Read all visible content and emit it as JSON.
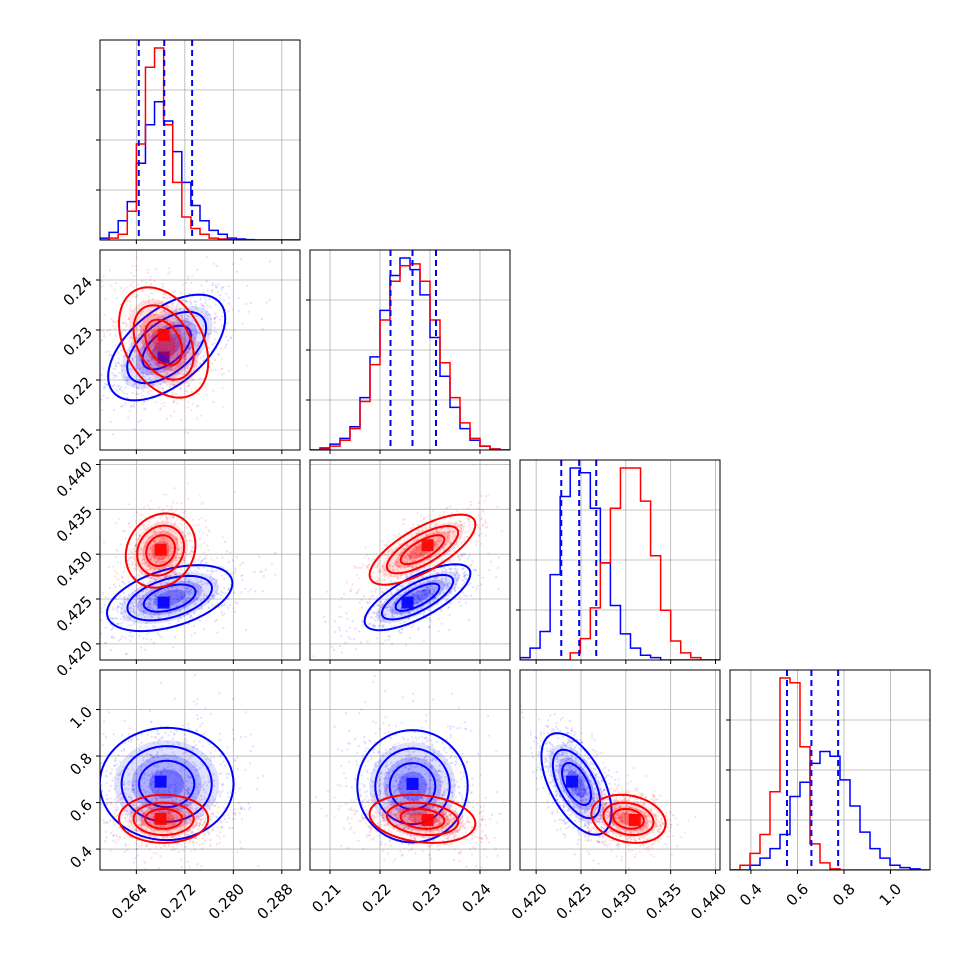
{
  "chart_data": {
    "type": "corner",
    "colors": {
      "model_a": "#0000ff",
      "model_b": "#ff0000",
      "quantile_lines": "#0000ff",
      "grid": "#b0b0b0"
    },
    "grid": true,
    "parameters": [
      {
        "range": [
          0.258,
          0.291
        ],
        "ticks": [
          0.264,
          0.272,
          0.28,
          0.288
        ],
        "tick_labels": [
          "0.264",
          "0.272",
          "0.280",
          "0.288"
        ]
      },
      {
        "range": [
          0.206,
          0.246
        ],
        "ticks": [
          0.21,
          0.22,
          0.23,
          0.24
        ],
        "tick_labels": [
          "0.21",
          "0.22",
          "0.23",
          "0.24"
        ]
      },
      {
        "range": [
          0.4182,
          0.4405
        ],
        "ticks": [
          0.42,
          0.425,
          0.43,
          0.435,
          0.44
        ],
        "tick_labels": [
          "0.420",
          "0.425",
          "0.430",
          "0.435",
          "0.440"
        ]
      },
      {
        "range": [
          0.31,
          1.17
        ],
        "ticks": [
          0.4,
          0.6,
          0.8,
          1.0
        ],
        "tick_labels": [
          "0.4",
          "0.6",
          "0.8",
          "1.0"
        ]
      }
    ],
    "quantiles": [
      [
        0.2644,
        0.2686,
        0.2732
      ],
      [
        0.2221,
        0.2265,
        0.2312
      ],
      [
        0.4228,
        0.4248,
        0.4267
      ],
      [
        0.555,
        0.66,
        0.775
      ]
    ],
    "series": [
      {
        "color": "#0000ff",
        "histograms": [
          {
            "edges": [
              0.258,
              0.2595,
              0.261,
              0.2625,
              0.264,
              0.2655,
              0.267,
              0.2685,
              0.27,
              0.2715,
              0.273,
              0.2745,
              0.276,
              0.2775,
              0.279,
              0.2805,
              0.282,
              0.2835,
              0.285,
              0.2865,
              0.288,
              0.2895,
              0.291
            ],
            "counts": [
              1,
              4,
              10,
              20,
              40,
              60,
              72,
              62,
              46,
              30,
              18,
              10,
              5,
              3,
              1,
              0.5,
              0.2,
              0,
              0,
              0,
              0,
              0
            ]
          },
          {
            "edges": [
              0.206,
              0.208,
              0.21,
              0.212,
              0.214,
              0.216,
              0.218,
              0.22,
              0.222,
              0.224,
              0.226,
              0.228,
              0.23,
              0.232,
              0.234,
              0.236,
              0.238,
              0.24,
              0.242,
              0.244,
              0.246
            ],
            "counts": [
              0,
              1,
              3,
              6,
              12,
              27,
              48,
              72,
              90,
              99,
              93,
              80,
              58,
              38,
              22,
              11,
              5,
              2,
              0.5,
              0
            ],
            "max": 100
          },
          {
            "edges": [
              0.4182,
              0.41932,
              0.42044,
              0.42156,
              0.42268,
              0.4238,
              0.42492,
              0.42604,
              0.42716,
              0.42828,
              0.4294,
              0.43052,
              0.43164,
              0.43276,
              0.43388,
              0.435,
              0.43612,
              0.43724,
              0.43836,
              0.43948,
              0.4406
            ],
            "counts": [
              1,
              5,
              12,
              36,
              69,
              81,
              79,
              64,
              41,
              23,
              11,
              5,
              2,
              1,
              0,
              0,
              0,
              0,
              0,
              0
            ],
            "max": 100
          },
          {
            "edges": [
              0.31,
              0.353,
              0.396,
              0.439,
              0.482,
              0.525,
              0.568,
              0.611,
              0.654,
              0.697,
              0.74,
              0.783,
              0.826,
              0.869,
              0.912,
              0.955,
              0.998,
              1.041,
              1.084,
              1.127,
              1.17
            ],
            "counts": [
              0,
              0,
              2,
              5,
              9,
              15,
              31,
              37,
              45,
              50,
              48,
              38,
              27,
              16,
              9,
              5,
              2,
              1,
              0.5,
              0
            ],
            "max": 100
          }
        ],
        "pairs": [
          {
            "x": 0,
            "y": 1,
            "mean": [
              0.269,
              0.2265
            ],
            "sd": [
              0.0042,
              0.0046
            ],
            "rho": 0.55,
            "n": 700,
            "peak": [
              0.2685,
              0.2245
            ]
          },
          {
            "x": 0,
            "y": 2,
            "mean": [
              0.2695,
              0.4251
            ],
            "sd": [
              0.0045,
              0.0016
            ],
            "rho": 0.45,
            "n": 700,
            "peak": [
              0.2685,
              0.4246
            ]
          },
          {
            "x": 1,
            "y": 2,
            "mean": [
              0.2275,
              0.4252
            ],
            "sd": [
              0.0046,
              0.0016
            ],
            "rho": 0.72,
            "n": 700,
            "peak": [
              0.2255,
              0.4246
            ]
          },
          {
            "x": 0,
            "y": 3,
            "mean": [
              0.269,
              0.68
            ],
            "sd": [
              0.0048,
              0.105
            ],
            "rho": 0.0,
            "n": 800,
            "peak": [
              0.268,
              0.69
            ]
          },
          {
            "x": 1,
            "y": 3,
            "mean": [
              0.2265,
              0.67
            ],
            "sd": [
              0.0048,
              0.105
            ],
            "rho": 0.0,
            "n": 800,
            "peak": [
              0.2265,
              0.68
            ]
          },
          {
            "x": 2,
            "y": 3,
            "mean": [
              0.4245,
              0.68
            ],
            "sd": [
              0.0017,
              0.095
            ],
            "rho": -0.55,
            "n": 800,
            "peak": [
              0.424,
              0.69
            ]
          }
        ]
      },
      {
        "color": "#ff0000",
        "histograms": [
          {
            "edges": [
              0.258,
              0.2595,
              0.261,
              0.2625,
              0.264,
              0.2655,
              0.267,
              0.2685,
              0.27,
              0.2715,
              0.273,
              0.2745,
              0.276,
              0.2775,
              0.279,
              0.2805,
              0.282,
              0.2835,
              0.285,
              0.2865,
              0.288,
              0.2895,
              0.291
            ],
            "counts": [
              0,
              1,
              3,
              15,
              50,
              90,
              100,
              60,
              30,
              12,
              6,
              3,
              1,
              0.5,
              0.2,
              0,
              0,
              0,
              0,
              0,
              0,
              0
            ]
          },
          {
            "edges": [
              0.206,
              0.208,
              0.21,
              0.212,
              0.214,
              0.216,
              0.218,
              0.22,
              0.222,
              0.224,
              0.226,
              0.228,
              0.23,
              0.232,
              0.234,
              0.236,
              0.238,
              0.24,
              0.242,
              0.244,
              0.246
            ],
            "counts": [
              0,
              0.5,
              2,
              5,
              11,
              25,
              44,
              67,
              87,
              95,
              96,
              87,
              67,
              45,
              27,
              14,
              6,
              2,
              0.5,
              0
            ],
            "max": 100
          },
          {
            "edges": [
              0.4182,
              0.41932,
              0.42044,
              0.42156,
              0.42268,
              0.4238,
              0.42492,
              0.42604,
              0.42716,
              0.42828,
              0.4294,
              0.43052,
              0.43164,
              0.43276,
              0.43388,
              0.435,
              0.43612,
              0.43724,
              0.43836,
              0.43948,
              0.4406
            ],
            "counts": [
              0,
              0,
              0,
              0,
              0,
              3,
              9,
              22,
              41,
              64,
              81,
              81,
              67,
              44,
              21,
              8,
              3,
              1,
              0,
              0
            ],
            "max": 100
          },
          {
            "edges": [
              0.31,
              0.353,
              0.396,
              0.439,
              0.482,
              0.525,
              0.568,
              0.611,
              0.654,
              0.697,
              0.74,
              0.783,
              0.826,
              0.869,
              0.912,
              0.955,
              0.998,
              1.041,
              1.084,
              1.127,
              1.17
            ],
            "counts": [
              0,
              2,
              7,
              15,
              33,
              81,
              79,
              52,
              11,
              3,
              0.5,
              0,
              0,
              0,
              0,
              0,
              0,
              0,
              0,
              0
            ],
            "max": 100
          }
        ],
        "pairs": [
          {
            "x": 0,
            "y": 1,
            "mean": [
              0.2685,
              0.2275
            ],
            "sd": [
              0.0032,
              0.0048
            ],
            "rho": -0.35,
            "n": 700,
            "peak": [
              0.2685,
              0.229
            ]
          },
          {
            "x": 0,
            "y": 2,
            "mean": [
              0.268,
              0.4304
            ],
            "sd": [
              0.0025,
              0.0018
            ],
            "rho": 0.15,
            "n": 700,
            "peak": [
              0.268,
              0.4305
            ]
          },
          {
            "x": 1,
            "y": 2,
            "mean": [
              0.2285,
              0.4305
            ],
            "sd": [
              0.0046,
              0.0017
            ],
            "rho": 0.72,
            "n": 700,
            "peak": [
              0.2295,
              0.431
            ]
          },
          {
            "x": 0,
            "y": 3,
            "mean": [
              0.2685,
              0.53
            ],
            "sd": [
              0.0032,
              0.045
            ],
            "rho": 0.0,
            "n": 800,
            "peak": [
              0.268,
              0.53
            ]
          },
          {
            "x": 1,
            "y": 3,
            "mean": [
              0.2285,
              0.53
            ],
            "sd": [
              0.0046,
              0.045
            ],
            "rho": -0.2,
            "n": 800,
            "peak": [
              0.2295,
              0.525
            ]
          },
          {
            "x": 2,
            "y": 3,
            "mean": [
              0.4303,
              0.53
            ],
            "sd": [
              0.0018,
              0.045
            ],
            "rho": -0.2,
            "n": 800,
            "peak": [
              0.431,
              0.525
            ]
          }
        ]
      }
    ]
  }
}
